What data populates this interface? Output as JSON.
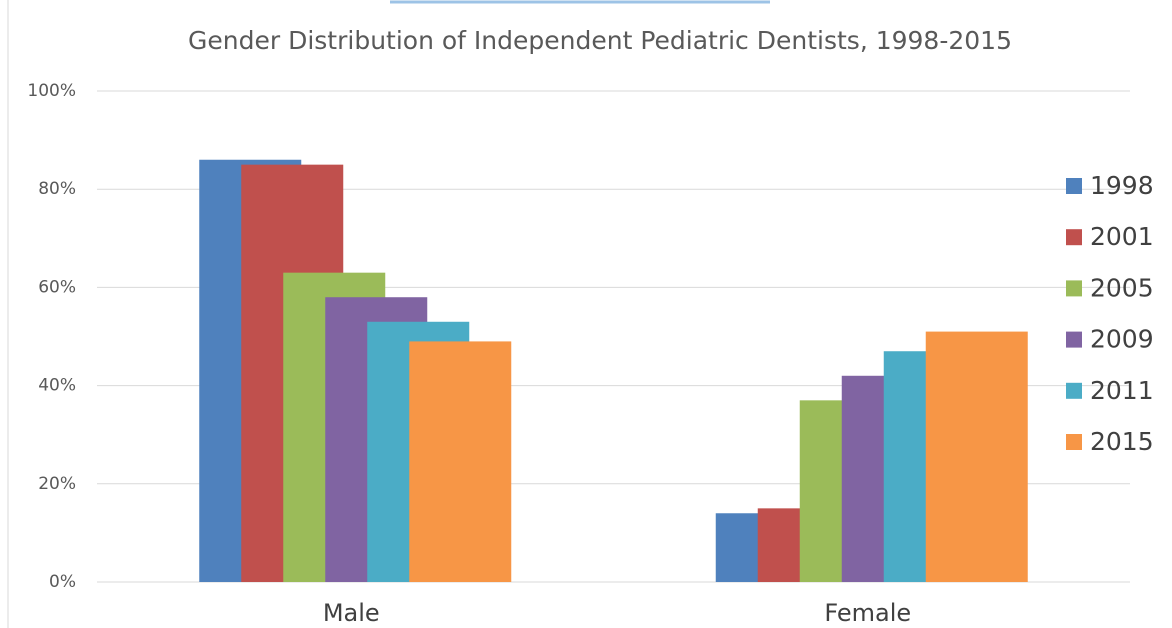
{
  "chart_data": {
    "type": "bar",
    "title": "Gender Distribution of Independent Pediatric Dentists, 1998-2015",
    "categories": [
      "Male",
      "Female"
    ],
    "series": [
      {
        "name": "1998",
        "color": "#4f81bd",
        "values": [
          86,
          14
        ]
      },
      {
        "name": "2001",
        "color": "#c0504d",
        "values": [
          85,
          15
        ]
      },
      {
        "name": "2005",
        "color": "#9bbb59",
        "values": [
          63,
          37
        ]
      },
      {
        "name": "2009",
        "color": "#8064a2",
        "values": [
          58,
          42
        ]
      },
      {
        "name": "2011",
        "color": "#4bacc6",
        "values": [
          53,
          47
        ]
      },
      {
        "name": "2015",
        "color": "#f79646",
        "values": [
          49,
          51
        ]
      }
    ],
    "ylim": [
      0,
      100
    ],
    "yticks": [
      {
        "value": 0,
        "label": "0%"
      },
      {
        "value": 20,
        "label": "20%"
      },
      {
        "value": 40,
        "label": "40%"
      },
      {
        "value": 60,
        "label": "60%"
      },
      {
        "value": 80,
        "label": "80%"
      },
      {
        "value": 100,
        "label": "100%"
      }
    ],
    "grid": true,
    "legend": "right"
  }
}
